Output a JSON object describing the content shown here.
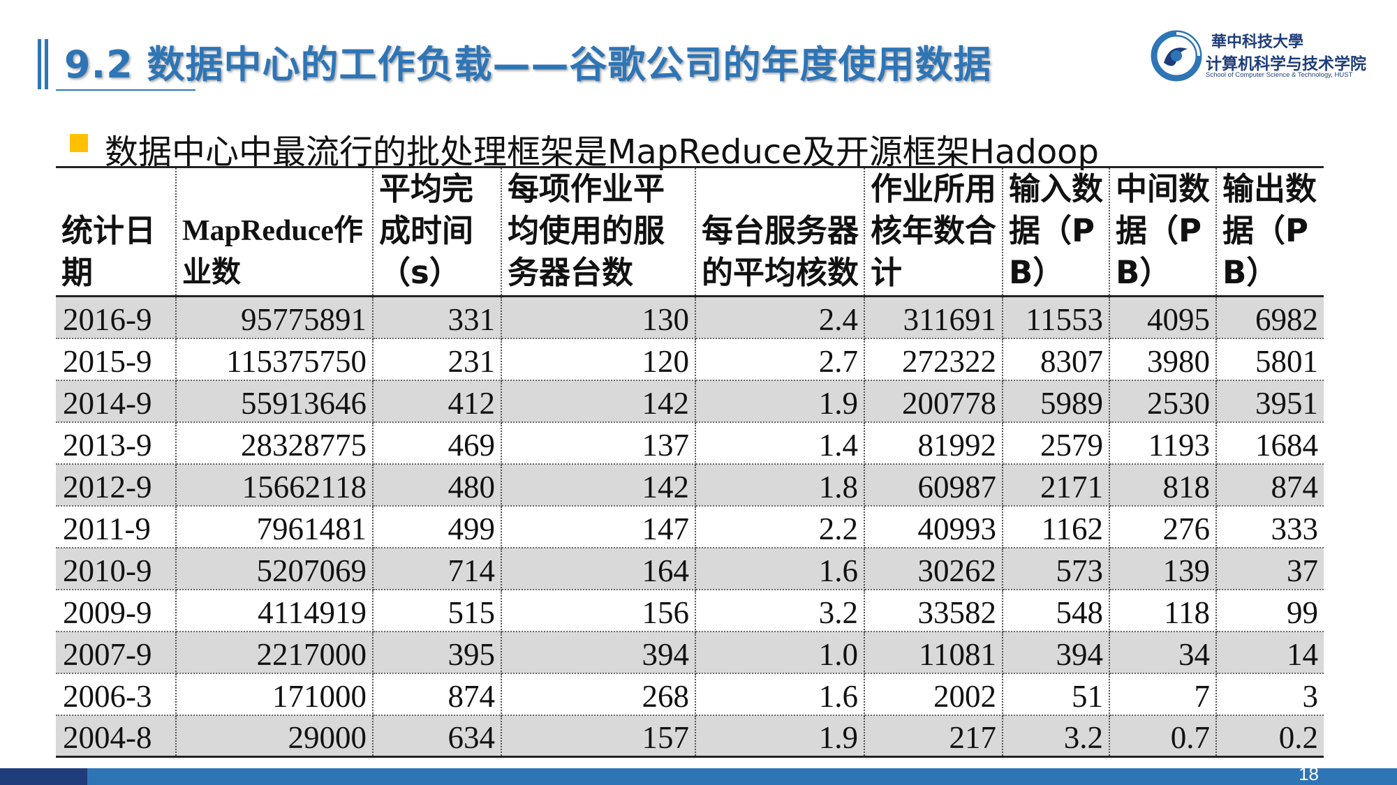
{
  "header": {
    "title": "9.2  数据中心的工作负载——谷歌公司的年度使用数据"
  },
  "logo": {
    "university_cn": "華中科技大學",
    "department_cn": "计算机科学与技术学院",
    "department_en": "School of Computer Science & Technology, HUST",
    "icon": "hust-swirl-logo-icon"
  },
  "bullet": {
    "text": "数据中心中最流行的批处理框架是MapReduce及开源框架Hadoop"
  },
  "table": {
    "headers": [
      "统计日期",
      "MapReduce作业数",
      "平均完成时间（s）",
      "每项作业平均使用的服务器台数",
      "每台服务器的平均核数",
      "作业所用核年数合计",
      "输入数据（PB）",
      "中间数据（PB）",
      "输出数据（PB）"
    ],
    "rows": [
      [
        "2016-9",
        "95775891",
        "331",
        "130",
        "2.4",
        "311691",
        "11553",
        "4095",
        "6982"
      ],
      [
        "2015-9",
        "115375750",
        "231",
        "120",
        "2.7",
        "272322",
        "8307",
        "3980",
        "5801"
      ],
      [
        "2014-9",
        "55913646",
        "412",
        "142",
        "1.9",
        "200778",
        "5989",
        "2530",
        "3951"
      ],
      [
        "2013-9",
        "28328775",
        "469",
        "137",
        "1.4",
        "81992",
        "2579",
        "1193",
        "1684"
      ],
      [
        "2012-9",
        "15662118",
        "480",
        "142",
        "1.8",
        "60987",
        "2171",
        "818",
        "874"
      ],
      [
        "2011-9",
        "7961481",
        "499",
        "147",
        "2.2",
        "40993",
        "1162",
        "276",
        "333"
      ],
      [
        "2010-9",
        "5207069",
        "714",
        "164",
        "1.6",
        "30262",
        "573",
        "139",
        "37"
      ],
      [
        "2009-9",
        "4114919",
        "515",
        "156",
        "3.2",
        "33582",
        "548",
        "118",
        "99"
      ],
      [
        "2007-9",
        "2217000",
        "395",
        "394",
        "1.0",
        "11081",
        "394",
        "34",
        "14"
      ],
      [
        "2006-3",
        "171000",
        "874",
        "268",
        "1.6",
        "2002",
        "51",
        "7",
        "3"
      ],
      [
        "2004-8",
        "29000",
        "634",
        "157",
        "1.9",
        "217",
        "3.2",
        "0.7",
        "0.2"
      ]
    ]
  },
  "footer": {
    "page_number": "18"
  },
  "colors": {
    "accent": "#2e75b6",
    "bullet": "#ffc000",
    "row_shade": "#d9d9d9"
  }
}
